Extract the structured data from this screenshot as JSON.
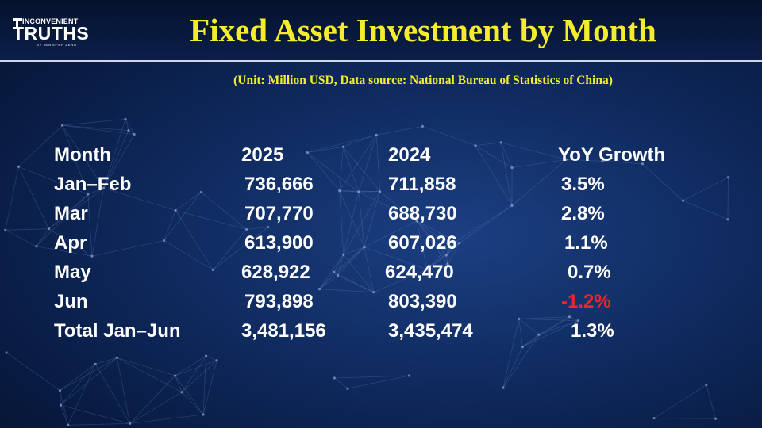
{
  "logo": {
    "line1": "INCONVENIENT",
    "line2": "TRUTHS",
    "line3": "BY JENNIFER ZENG"
  },
  "title": "Fixed Asset Investment by Month",
  "subtitle": "(Unit: Million USD, Data source: National Bureau of Statistics of China)",
  "colors": {
    "title": "#f5ec2e",
    "text": "#ffffff",
    "negative": "#e8262c",
    "background": "#0f2a5e"
  },
  "chart_data": {
    "type": "table",
    "title": "Fixed Asset Investment by Month",
    "subtitle": "(Unit: Million USD, Data source: National Bureau of Statistics of China)",
    "columns": [
      "Month",
      "2025",
      "2024",
      "YoY Growth"
    ],
    "rows": [
      [
        "Jan–Feb",
        "736,666",
        "711,858",
        "3.5%"
      ],
      [
        "Mar",
        "707,770",
        "688,730",
        "2.8%"
      ],
      [
        "Apr",
        "613,900",
        "607,026",
        "1.1%"
      ],
      [
        "May",
        "628,922",
        "624,470",
        "0.7%"
      ],
      [
        "Jun",
        "793,898",
        "803,390",
        "-1.2%"
      ],
      [
        "Total Jan–Jun",
        "3,481,156",
        "3,435,474",
        "1.3%"
      ]
    ],
    "values": {
      "2025": [
        736666,
        707770,
        613900,
        628922,
        793898,
        3481156
      ],
      "2024": [
        711858,
        688730,
        607026,
        624470,
        803390,
        3435474
      ],
      "yoy_growth_percent": [
        3.5,
        2.8,
        1.1,
        0.7,
        -1.2,
        1.3
      ]
    }
  }
}
